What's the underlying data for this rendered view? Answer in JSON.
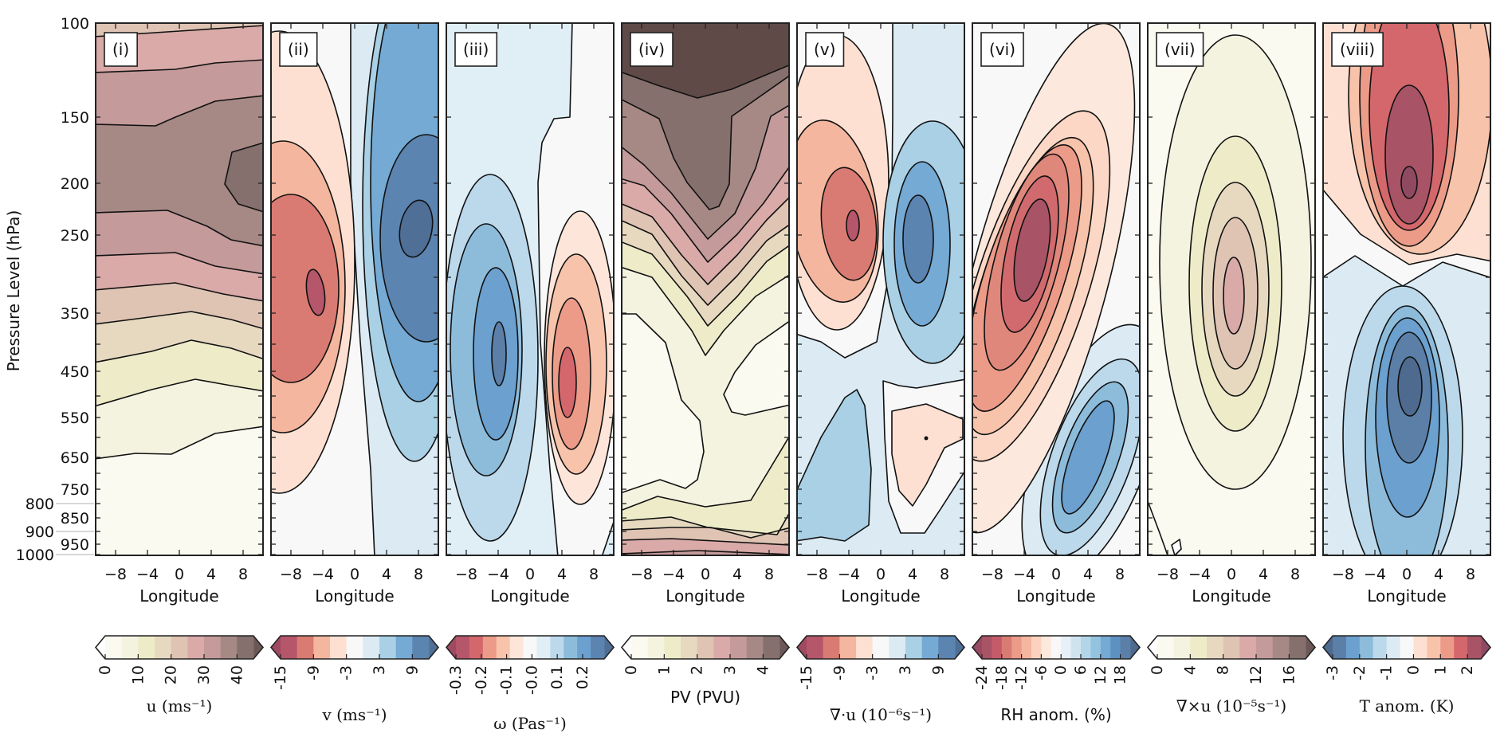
{
  "figure": {
    "ylabel": "Pressure Level (hPa)",
    "yticks": [
      "100",
      "150",
      "200",
      "250",
      "350",
      "450",
      "550",
      "650",
      "750",
      "800",
      "850",
      "900",
      "950",
      "1000"
    ],
    "xticks": [
      "−8",
      "−4",
      "0",
      "4",
      "8"
    ]
  },
  "chart_data": [
    {
      "type": "heatmap",
      "panel_label": "(i)",
      "xlabel": "Longitude",
      "ylabel": "Pressure Level (hPa)",
      "xlim": [
        -10.5,
        10.5
      ],
      "ylim": [
        1000,
        100
      ],
      "colorbar": {
        "label": "u (ms⁻¹)",
        "plain": false,
        "ticks": [
          "0",
          "10",
          "20",
          "30",
          "40"
        ],
        "tick_values": [
          0,
          10,
          20,
          30,
          40
        ],
        "vmin": 0,
        "vmax": 45,
        "colors": [
          "#fbfaf0",
          "#f4f3e0",
          "#eeebc9",
          "#e6d9c0",
          "#dfc4b4",
          "#d9aaa8",
          "#c49a9a",
          "#a68985",
          "#85706e"
        ],
        "under": "#ffffff",
        "over": "#6b5856"
      }
    },
    {
      "type": "heatmap",
      "panel_label": "(ii)",
      "xlabel": "Longitude",
      "ylabel": "Pressure Level (hPa)",
      "xlim": [
        -10.5,
        10.5
      ],
      "ylim": [
        1000,
        100
      ],
      "colorbar": {
        "label": "v (ms⁻¹)",
        "plain": false,
        "ticks": [
          "-15",
          "-9",
          "-3",
          "3",
          "9"
        ],
        "tick_values": [
          -15,
          -9,
          -3,
          3,
          9
        ],
        "vmin": -15,
        "vmax": 12,
        "colors": [
          "#b5566a",
          "#d97b72",
          "#f4b69e",
          "#fde0d2",
          "#f8f8f8",
          "#dbeaf3",
          "#a9d0e5",
          "#75aad4",
          "#5b84b0"
        ],
        "under": "#a04a62",
        "over": "#4f6f96"
      }
    },
    {
      "type": "heatmap",
      "panel_label": "(iii)",
      "xlabel": "Longitude",
      "ylabel": "Pressure Level (hPa)",
      "xlim": [
        -10.5,
        10.5
      ],
      "ylim": [
        1000,
        100
      ],
      "colorbar": {
        "label": "ω (Pas⁻¹)",
        "plain": false,
        "ticks": [
          "-0.3",
          "-0.2",
          "-0.1",
          "-0.0",
          "0.1",
          "0.2"
        ],
        "tick_values": [
          -0.3,
          -0.2,
          -0.1,
          0.0,
          0.1,
          0.2
        ],
        "vmin": -0.3,
        "vmax": 0.285,
        "colors": [
          "#b5566a",
          "#d3676c",
          "#eb9b88",
          "#f8c3ab",
          "#fde5da",
          "#f8f8f8",
          "#e0eef6",
          "#bcd9ec",
          "#8dbcdb",
          "#6ba0cf",
          "#5b84b0"
        ],
        "under": "#a04a62",
        "over": "#4f6f96"
      }
    },
    {
      "type": "heatmap",
      "panel_label": "(iv)",
      "xlabel": "Longitude",
      "ylabel": "Pressure Level (hPa)",
      "xlim": [
        -10.5,
        10.5
      ],
      "ylim": [
        1000,
        100
      ],
      "colorbar": {
        "label": "PV (PVU)",
        "plain": true,
        "ticks": [
          "0",
          "1",
          "2",
          "3",
          "4"
        ],
        "tick_values": [
          0,
          1,
          2,
          3,
          4
        ],
        "vmin": 0,
        "vmax": 4.5,
        "colors": [
          "#fbfaf0",
          "#f4f3e0",
          "#eeebc9",
          "#e6d9c0",
          "#dfc4b4",
          "#d9aaa8",
          "#c49a9a",
          "#a68985",
          "#85706e"
        ],
        "under": "#ffffff",
        "over": "#6b5856"
      }
    },
    {
      "type": "heatmap",
      "panel_label": "(v)",
      "xlabel": "Longitude",
      "ylabel": "Pressure Level (hPa)",
      "xlim": [
        -10.5,
        10.5
      ],
      "ylim": [
        1000,
        100
      ],
      "colorbar": {
        "label": "∇·u (10⁻⁶s⁻¹)",
        "plain": false,
        "ticks": [
          "-15",
          "-9",
          "-3",
          "3",
          "9"
        ],
        "tick_values": [
          -15,
          -9,
          -3,
          3,
          9
        ],
        "vmin": -15,
        "vmax": 12,
        "colors": [
          "#b5566a",
          "#d97b72",
          "#f4b69e",
          "#fde0d2",
          "#f8f8f8",
          "#dbeaf3",
          "#a9d0e5",
          "#75aad4",
          "#5b84b0"
        ],
        "under": "#a04a62",
        "over": "#4f6f96"
      }
    },
    {
      "type": "heatmap",
      "panel_label": "(vi)",
      "xlabel": "Longitude",
      "ylabel": "Pressure Level (hPa)",
      "xlim": [
        -10.5,
        10.5
      ],
      "ylim": [
        1000,
        100
      ],
      "colorbar": {
        "label": "RH anom. (%)",
        "plain": true,
        "ticks": [
          "-24",
          "-18",
          "-12",
          "-6",
          "0",
          "6",
          "12",
          "18"
        ],
        "tick_values": [
          -24,
          -18,
          -12,
          -6,
          0,
          6,
          12,
          18
        ],
        "vmin": -24,
        "vmax": 21,
        "colors": [
          "#a85466",
          "#c55b6a",
          "#d97b72",
          "#eb9b88",
          "#f4b69e",
          "#fcd2be",
          "#fde8dd",
          "#f8f8f8",
          "#e6f0f7",
          "#cfe3ef",
          "#b3d5e8",
          "#94c3df",
          "#75aad4",
          "#5e90c2",
          "#5b7fa7"
        ],
        "under": "#974a60",
        "over": "#4f6a8f"
      }
    },
    {
      "type": "heatmap",
      "panel_label": "(vii)",
      "xlabel": "Longitude",
      "ylabel": "Pressure Level (hPa)",
      "xlim": [
        -10.5,
        10.5
      ],
      "ylim": [
        1000,
        100
      ],
      "colorbar": {
        "label": "∇×u (10⁻⁵s⁻¹)",
        "plain": false,
        "ticks": [
          "0",
          "4",
          "8",
          "12",
          "16"
        ],
        "tick_values": [
          0,
          4,
          8,
          12,
          16
        ],
        "vmin": 0,
        "vmax": 18,
        "colors": [
          "#fbfaf0",
          "#f4f3e0",
          "#eeebc9",
          "#e6d9c0",
          "#dfc4b4",
          "#d9aaa8",
          "#c49a9a",
          "#a68985",
          "#85706e"
        ],
        "under": "#ffffff",
        "over": "#6b5856"
      }
    },
    {
      "type": "heatmap",
      "panel_label": "(viii)",
      "xlabel": "Longitude",
      "ylabel": "Pressure Level (hPa)",
      "xlim": [
        -10.5,
        10.5
      ],
      "ylim": [
        1000,
        100
      ],
      "colorbar": {
        "label": "T anom. (K)",
        "plain": false,
        "ticks": [
          "-3",
          "-2",
          "-1",
          "0",
          "1",
          "2"
        ],
        "tick_values": [
          -3,
          -2,
          -1,
          0,
          1,
          2
        ],
        "vmin": -3,
        "vmax": 2.5,
        "colors": [
          "#5b7fa7",
          "#6ba0cf",
          "#8dbcdb",
          "#bcd9ec",
          "#dbeaf3",
          "#f8f8f8",
          "#fde0d2",
          "#f8c3ab",
          "#eb9b88",
          "#d3676c",
          "#a85466"
        ],
        "under": "#4f6a8f",
        "over": "#8f4a62"
      }
    }
  ]
}
